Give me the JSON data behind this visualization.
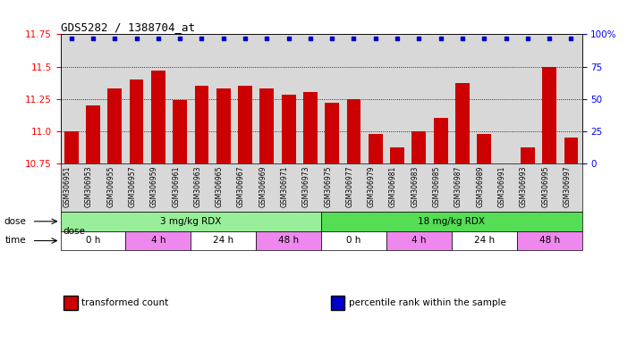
{
  "title": "GDS5282 / 1388704_at",
  "samples": [
    "GSM306951",
    "GSM306953",
    "GSM306955",
    "GSM306957",
    "GSM306959",
    "GSM306961",
    "GSM306963",
    "GSM306965",
    "GSM306967",
    "GSM306969",
    "GSM306971",
    "GSM306973",
    "GSM306975",
    "GSM306977",
    "GSM306979",
    "GSM306981",
    "GSM306983",
    "GSM306985",
    "GSM306987",
    "GSM306989",
    "GSM306991",
    "GSM306993",
    "GSM306995",
    "GSM306997"
  ],
  "values": [
    11.0,
    11.2,
    11.33,
    11.4,
    11.47,
    11.24,
    11.35,
    11.33,
    11.35,
    11.33,
    11.28,
    11.3,
    11.22,
    11.25,
    10.98,
    10.87,
    11.0,
    11.1,
    11.37,
    10.98,
    10.75,
    10.87,
    11.5,
    10.95
  ],
  "ylim": [
    10.75,
    11.75
  ],
  "yticks": [
    10.75,
    11.0,
    11.25,
    11.5,
    11.75
  ],
  "bar_color": "#cc0000",
  "dot_color": "#0000cc",
  "bg_color": "#d8d8d8",
  "plot_bg": "#ffffff",
  "dose_groups": [
    {
      "label": "3 mg/kg RDX",
      "start": 0,
      "end": 12,
      "color": "#99ee99"
    },
    {
      "label": "18 mg/kg RDX",
      "start": 12,
      "end": 24,
      "color": "#55dd55"
    }
  ],
  "time_groups": [
    {
      "label": "0 h",
      "start": 0,
      "end": 3,
      "color": "#ffffff"
    },
    {
      "label": "4 h",
      "start": 3,
      "end": 6,
      "color": "#ee88ee"
    },
    {
      "label": "24 h",
      "start": 6,
      "end": 9,
      "color": "#ffffff"
    },
    {
      "label": "48 h",
      "start": 9,
      "end": 12,
      "color": "#ee88ee"
    },
    {
      "label": "0 h",
      "start": 12,
      "end": 15,
      "color": "#ffffff"
    },
    {
      "label": "4 h",
      "start": 15,
      "end": 18,
      "color": "#ee88ee"
    },
    {
      "label": "24 h",
      "start": 18,
      "end": 21,
      "color": "#ffffff"
    },
    {
      "label": "48 h",
      "start": 21,
      "end": 24,
      "color": "#ee88ee"
    }
  ],
  "legend_items": [
    {
      "label": "transformed count",
      "color": "#cc0000"
    },
    {
      "label": "percentile rank within the sample",
      "color": "#0000cc"
    }
  ],
  "right_yticks": [
    0,
    25,
    50,
    75,
    100
  ],
  "right_yticklabels": [
    "0",
    "25",
    "50",
    "75",
    "100%"
  ],
  "grid_lines": [
    11.0,
    11.25,
    11.5
  ]
}
